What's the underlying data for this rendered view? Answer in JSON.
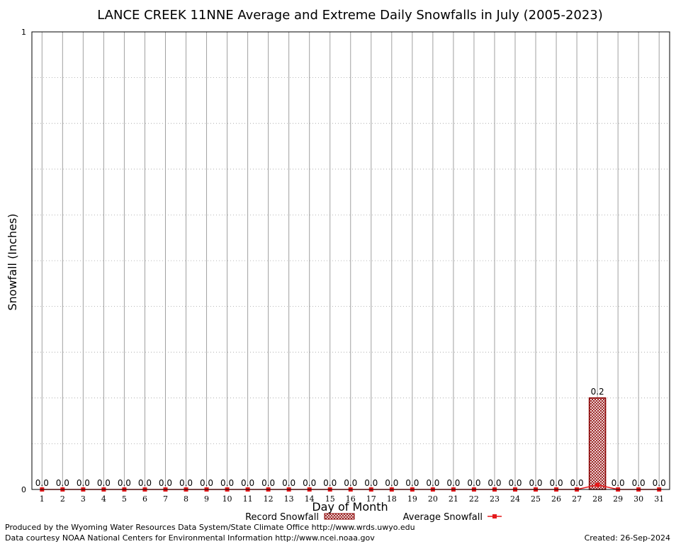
{
  "chart_data": {
    "type": "bar",
    "title": "LANCE CREEK 11NNE Average and Extreme Daily Snowfalls in July (2005-2023)",
    "xlabel": "Day of Month",
    "ylabel": "Snowfall (Inches)",
    "ylim": [
      0,
      1
    ],
    "ytick_labels": [
      "0",
      "1"
    ],
    "grid": true,
    "categories": [
      "1",
      "2",
      "3",
      "4",
      "5",
      "6",
      "7",
      "8",
      "9",
      "10",
      "11",
      "12",
      "13",
      "14",
      "15",
      "16",
      "17",
      "18",
      "19",
      "20",
      "21",
      "22",
      "23",
      "24",
      "25",
      "26",
      "27",
      "28",
      "29",
      "30",
      "31"
    ],
    "series": [
      {
        "name": "Record Snowfall",
        "type": "bar",
        "color": "#8b0000",
        "values": [
          0,
          0,
          0,
          0,
          0,
          0,
          0,
          0,
          0,
          0,
          0,
          0,
          0,
          0,
          0,
          0,
          0,
          0,
          0,
          0,
          0,
          0,
          0,
          0,
          0,
          0,
          0,
          0.2,
          0,
          0,
          0
        ]
      },
      {
        "name": "Average Snowfall",
        "type": "line",
        "color": "#e41a1c",
        "values": [
          0,
          0,
          0,
          0,
          0,
          0,
          0,
          0,
          0,
          0,
          0,
          0,
          0,
          0,
          0,
          0,
          0,
          0,
          0,
          0,
          0,
          0,
          0,
          0,
          0,
          0,
          0,
          0.01,
          0,
          0,
          0
        ]
      }
    ],
    "data_labels": [
      "0.0",
      "0.0",
      "0.0",
      "0.0",
      "0.0",
      "0.0",
      "0.0",
      "0.0",
      "0.0",
      "0.0",
      "0.0",
      "0.0",
      "0.0",
      "0.0",
      "0.0",
      "0.0",
      "0.0",
      "0.0",
      "0.0",
      "0.0",
      "0.0",
      "0.0",
      "0.0",
      "0.0",
      "0.0",
      "0.0",
      "0.0",
      "0.2",
      "0.0",
      "0.0",
      "0.0"
    ]
  },
  "footer": {
    "producer": "Produced by the Wyoming Water Resources Data System/State Climate Office http://www.wrds.uwyo.edu",
    "courtesy": "Data courtesy NOAA National Centers for Environmental Information http://www.ncei.noaa.gov",
    "created": "Created: 26-Sep-2024"
  }
}
